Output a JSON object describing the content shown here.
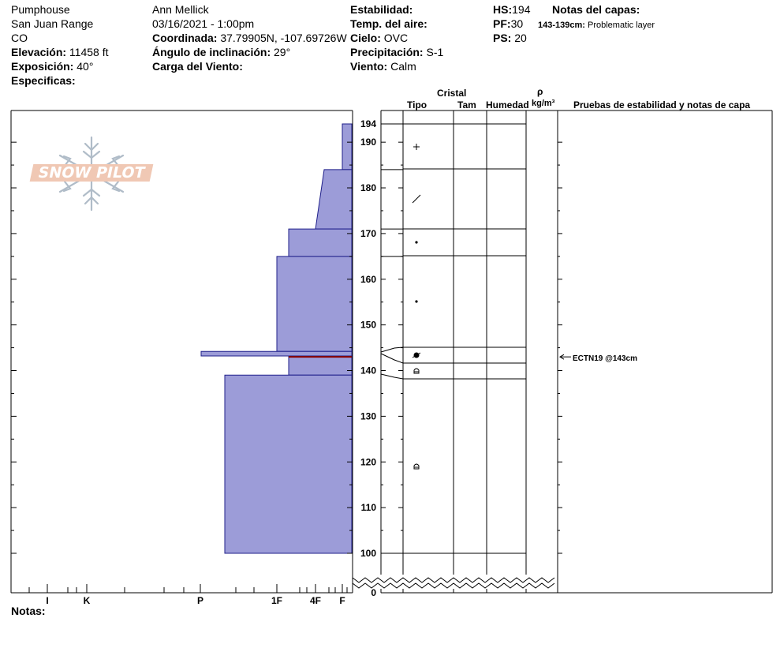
{
  "header": {
    "location": "Pumphouse",
    "range": "San Juan Range",
    "state": "CO",
    "elevation_label": "Elevación:",
    "elevation_value": "11458 ft",
    "aspect_label": "Exposición:",
    "aspect_value": "40°",
    "specifics_label": "Especificas:",
    "observer": "Ann Mellick",
    "datetime": "03/16/2021 - 1:00pm",
    "coord_label": "Coordinada:",
    "coord_value": "37.79905N, -107.69726W",
    "slope_label": "Ángulo de inclinación:",
    "slope_value": "29°",
    "wind_load_label": "Carga del Viento:",
    "stability_label": "Estabilidad:",
    "air_temp_label": "Temp. del aire:",
    "sky_label": "Cielo:",
    "sky_value": "OVC",
    "precip_label": "Precipitación:",
    "precip_value": "S-1",
    "wind_label": "Viento:",
    "wind_value": "Calm",
    "hs_label": "HS:",
    "hs_value": "194",
    "pf_label": "PF:",
    "pf_value": "30",
    "ps_label": "PS:",
    "ps_value": "20",
    "layer_notes_label": "Notas del capas:",
    "layer_note_depth": "143-139cm:",
    "layer_note_text": "Problematic layer"
  },
  "logo_text": "SNOW PILOT",
  "columns": {
    "crystal": "Cristal",
    "type": "Tipo",
    "size": "Tam",
    "moisture": "Humedad",
    "rho": "ρ",
    "density_unit": "kg/m³",
    "tests": "Pruebas de estabilidad y notas de capa"
  },
  "hardness_axis": [
    "I",
    "K",
    "P",
    "1F",
    "4F",
    "F"
  ],
  "depth_ticks": [
    "194",
    "190",
    "180",
    "170",
    "160",
    "150",
    "140",
    "130",
    "120",
    "110",
    "100",
    "0"
  ],
  "test_result": "ECTN19 @143cm",
  "notes_label": "Notas:",
  "colors": {
    "hardness_fill": "#9c9cd8",
    "hardness_stroke": "#1f1f8a",
    "weak_layer": "#8b0000"
  },
  "chart_data": {
    "type": "snow-profile",
    "hs_cm": 194,
    "depth_range_cm": [
      100,
      194
    ],
    "hardness_scale": [
      "F",
      "4F",
      "1F",
      "P",
      "K",
      "I"
    ],
    "layer_boundaries_cm": [
      194,
      184,
      171,
      165,
      145,
      144,
      142,
      139,
      100
    ],
    "hardness_profile": [
      {
        "top": 194,
        "bottom": 184,
        "hardness": "F"
      },
      {
        "top": 184,
        "bottom": 171,
        "hardness": "4F to F"
      },
      {
        "top": 171,
        "bottom": 165,
        "hardness": "4F"
      },
      {
        "top": 165,
        "bottom": 144,
        "hardness": "1F"
      },
      {
        "top": 144,
        "bottom": 143,
        "hardness": "P"
      },
      {
        "top": 143,
        "bottom": 139,
        "hardness": "4F"
      },
      {
        "top": 139,
        "bottom": 100,
        "hardness": "P-"
      }
    ],
    "weak_layer_cm": 143,
    "grain_symbols": [
      {
        "depth": 189,
        "symbol": "+"
      },
      {
        "depth": 178,
        "symbol": "/"
      },
      {
        "depth": 168,
        "symbol": "•"
      },
      {
        "depth": 155,
        "symbol": "•"
      },
      {
        "depth": 143.5,
        "symbol": "◐"
      },
      {
        "depth": 140,
        "symbol": "⌂"
      },
      {
        "depth": 119,
        "symbol": "⌂"
      }
    ]
  }
}
